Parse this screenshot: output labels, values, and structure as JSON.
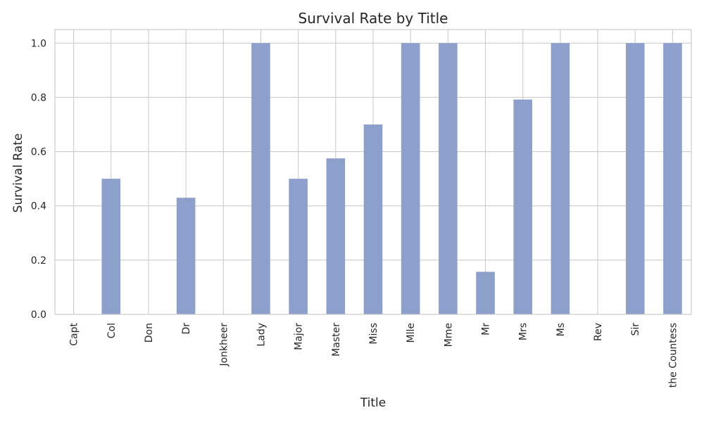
{
  "chart_data": {
    "type": "bar",
    "title": "Survival Rate by Title",
    "xlabel": "Title",
    "ylabel": "Survival Rate",
    "ylim": [
      0,
      1.05
    ],
    "yticks": [
      "0.0",
      "0.2",
      "0.4",
      "0.6",
      "0.8",
      "1.0"
    ],
    "grid": true,
    "bar_color": "#8da0cb",
    "categories": [
      "Capt",
      "Col",
      "Don",
      "Dr",
      "Jonkheer",
      "Lady",
      "Major",
      "Master",
      "Miss",
      "Mlle",
      "Mme",
      "Mr",
      "Mrs",
      "Ms",
      "Rev",
      "Sir",
      "the Countess"
    ],
    "values": [
      0.0,
      0.5,
      0.0,
      0.43,
      0.0,
      1.0,
      0.5,
      0.575,
      0.7,
      1.0,
      1.0,
      0.157,
      0.792,
      1.0,
      0.0,
      1.0,
      1.0
    ]
  }
}
